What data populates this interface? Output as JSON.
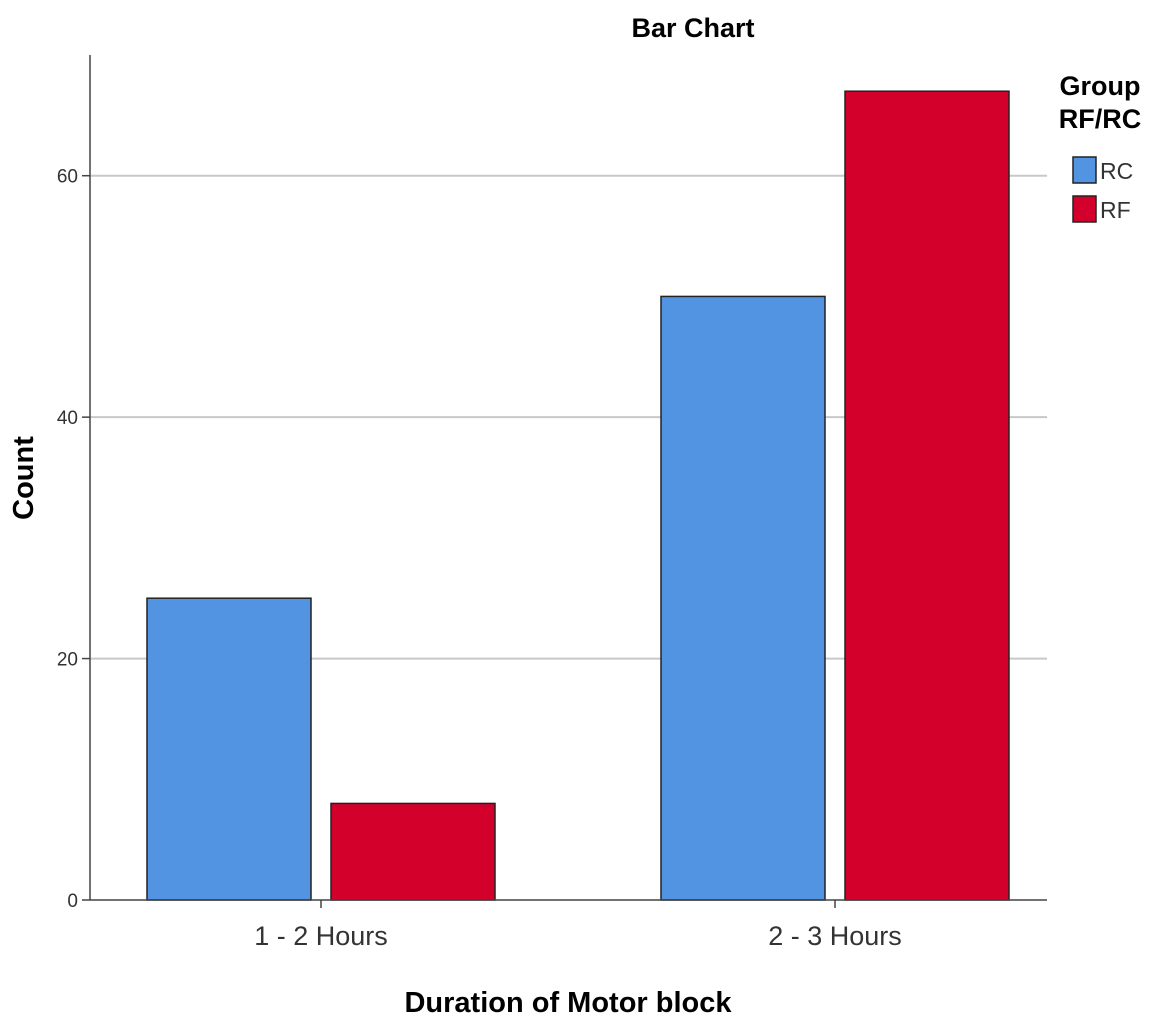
{
  "chart_data": {
    "type": "bar",
    "title": "Bar Chart",
    "xlabel": "Duration of Motor block",
    "ylabel": "Count",
    "categories": [
      "1 - 2 Hours",
      "2 - 3 Hours"
    ],
    "series": [
      {
        "name": "RC",
        "values": [
          25,
          50
        ],
        "color": "#5294e2"
      },
      {
        "name": "RF",
        "values": [
          8,
          67
        ],
        "color": "#d3002c"
      }
    ],
    "ylim": [
      0,
      70
    ],
    "yticks": [
      0,
      20,
      40,
      60
    ],
    "grid": true,
    "legend": {
      "title_lines": [
        "Group",
        "RF/RC"
      ],
      "placement": "top-right"
    }
  }
}
